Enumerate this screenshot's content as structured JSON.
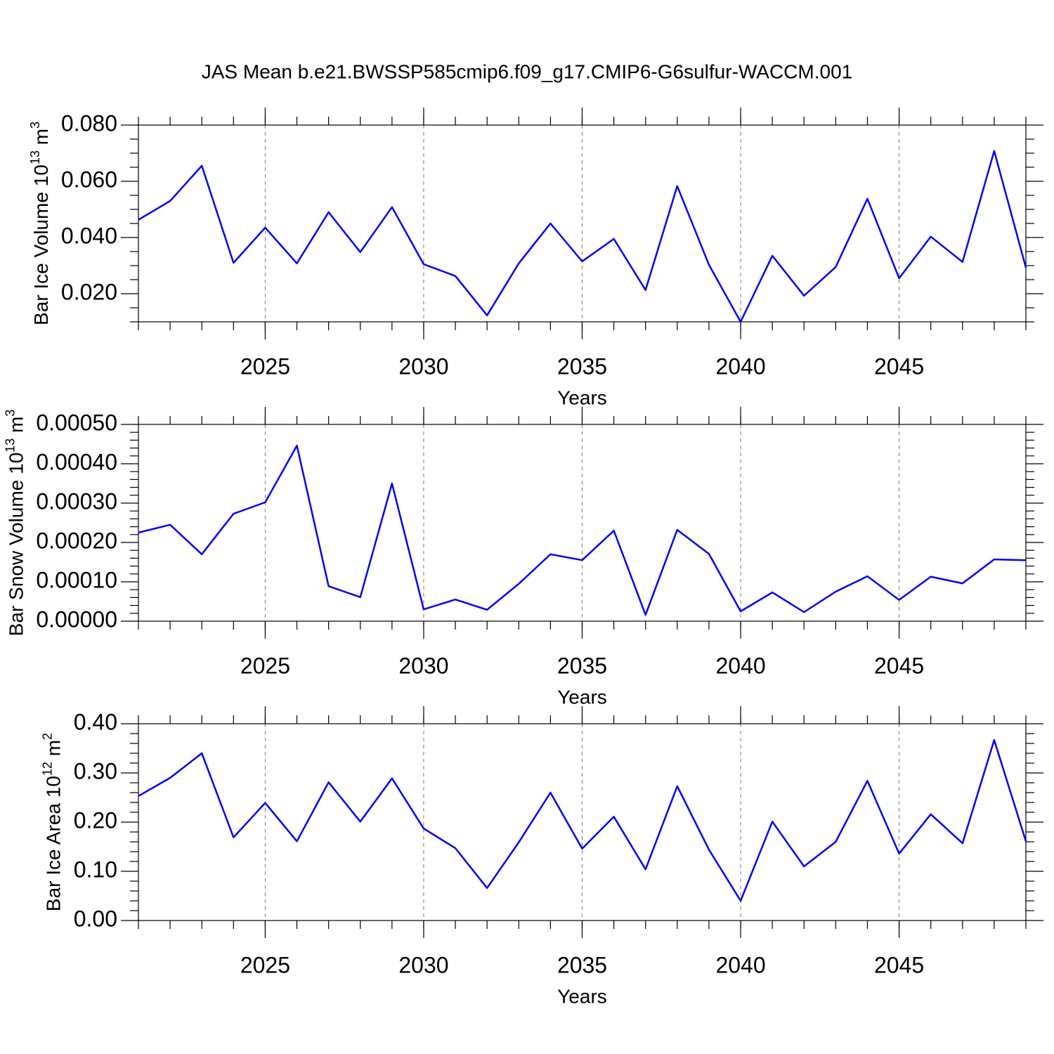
{
  "chart_data": [
    {
      "type": "line",
      "title": "JAS Mean b.e21.BWSSP585cmip6.f09_g17.CMIP6-G6sulfur-WACCM.001",
      "x": [
        2021,
        2022,
        2023,
        2024,
        2025,
        2026,
        2027,
        2028,
        2029,
        2030,
        2031,
        2032,
        2033,
        2034,
        2035,
        2036,
        2037,
        2038,
        2039,
        2040,
        2041,
        2042,
        2043,
        2044,
        2045,
        2046,
        2047,
        2048,
        2049
      ],
      "values": [
        0.0463,
        0.053,
        0.0655,
        0.031,
        0.0435,
        0.0308,
        0.049,
        0.0348,
        0.0508,
        0.0305,
        0.0263,
        0.0123,
        0.0308,
        0.045,
        0.0315,
        0.0395,
        0.0213,
        0.0583,
        0.0303,
        0.01,
        0.0335,
        0.0193,
        0.0295,
        0.0538,
        0.0255,
        0.0403,
        0.0313,
        0.0708,
        0.0293
      ],
      "color": "#0000ff",
      "xlim": [
        2021,
        2049
      ],
      "xticks": [
        2025,
        2030,
        2035,
        2040,
        2045
      ],
      "xgrid": true,
      "xlabel": "Years",
      "ylim": [
        0.01,
        0.08
      ],
      "yticks": [
        {
          "value": 0.02,
          "label": "0.020"
        },
        {
          "value": 0.04,
          "label": "0.040"
        },
        {
          "value": 0.06,
          "label": "0.060"
        },
        {
          "value": 0.08,
          "label": "0.080"
        }
      ],
      "yminorticks": [
        0.01,
        0.015,
        0.025,
        0.03,
        0.035,
        0.045,
        0.05,
        0.055,
        0.065,
        0.07,
        0.075
      ],
      "ylabel": [
        "Bar Ice Volume 10",
        "13",
        " m",
        "3"
      ]
    },
    {
      "type": "line",
      "x": [
        2021,
        2022,
        2023,
        2024,
        2025,
        2026,
        2027,
        2028,
        2029,
        2030,
        2031,
        2032,
        2033,
        2034,
        2035,
        2036,
        2037,
        2038,
        2039,
        2040,
        2041,
        2042,
        2043,
        2044,
        2045,
        2046,
        2047,
        2048,
        2049
      ],
      "values": [
        0.000225,
        0.000245,
        0.00017,
        0.000273,
        0.000302,
        0.000446,
        8.9e-05,
        6.1e-05,
        0.00035,
        3e-05,
        5.5e-05,
        2.9e-05,
        9.5e-05,
        0.00017,
        0.000155,
        0.00023,
        1.6e-05,
        0.000232,
        0.000171,
        2.5e-05,
        7.3e-05,
        2.3e-05,
        7.5e-05,
        0.000114,
        5.4e-05,
        0.000113,
        9.6e-05,
        0.000157,
        0.000155
      ],
      "color": "#0000ff",
      "xlim": [
        2021,
        2049
      ],
      "xticks": [
        2025,
        2030,
        2035,
        2040,
        2045
      ],
      "xgrid": true,
      "xlabel": "Years",
      "ylim": [
        0,
        0.0005
      ],
      "yticks": [
        {
          "value": 0,
          "label": "0.00000"
        },
        {
          "value": 0.0001,
          "label": "0.00010"
        },
        {
          "value": 0.0002,
          "label": "0.00020"
        },
        {
          "value": 0.0003,
          "label": "0.00030"
        },
        {
          "value": 0.0004,
          "label": "0.00040"
        },
        {
          "value": 0.0005,
          "label": "0.00050"
        }
      ],
      "yminorticks": [
        2e-05,
        4e-05,
        6e-05,
        8e-05,
        0.00012,
        0.00014,
        0.00016,
        0.00018,
        0.00022,
        0.00024,
        0.00026,
        0.00028,
        0.00032,
        0.00034,
        0.00036,
        0.00038,
        0.00042,
        0.00044,
        0.00046,
        0.00048
      ],
      "ylabel": [
        "Bar Snow Volume 10",
        "13",
        " m",
        "3"
      ]
    },
    {
      "type": "line",
      "x": [
        2021,
        2022,
        2023,
        2024,
        2025,
        2026,
        2027,
        2028,
        2029,
        2030,
        2031,
        2032,
        2033,
        2034,
        2035,
        2036,
        2037,
        2038,
        2039,
        2040,
        2041,
        2042,
        2043,
        2044,
        2045,
        2046,
        2047,
        2048,
        2049
      ],
      "values": [
        0.253,
        0.29,
        0.34,
        0.169,
        0.239,
        0.161,
        0.281,
        0.201,
        0.289,
        0.187,
        0.147,
        0.066,
        0.159,
        0.26,
        0.146,
        0.211,
        0.104,
        0.273,
        0.144,
        0.04,
        0.201,
        0.11,
        0.16,
        0.284,
        0.136,
        0.216,
        0.157,
        0.367,
        0.161
      ],
      "color": "#0000ff",
      "xlim": [
        2021,
        2049
      ],
      "xticks": [
        2025,
        2030,
        2035,
        2040,
        2045
      ],
      "xgrid": true,
      "xlabel": "Years",
      "ylim": [
        0,
        0.4
      ],
      "yticks": [
        {
          "value": 0,
          "label": "0.00"
        },
        {
          "value": 0.1,
          "label": "0.10"
        },
        {
          "value": 0.2,
          "label": "0.20"
        },
        {
          "value": 0.3,
          "label": "0.30"
        },
        {
          "value": 0.4,
          "label": "0.40"
        }
      ],
      "yminorticks": [
        0.02,
        0.04,
        0.06,
        0.08,
        0.12,
        0.14,
        0.16,
        0.18,
        0.22,
        0.24,
        0.26,
        0.28,
        0.32,
        0.34,
        0.36,
        0.38
      ],
      "ylabel": [
        "Bar Ice Area 10",
        "12",
        " m",
        "2"
      ]
    }
  ]
}
